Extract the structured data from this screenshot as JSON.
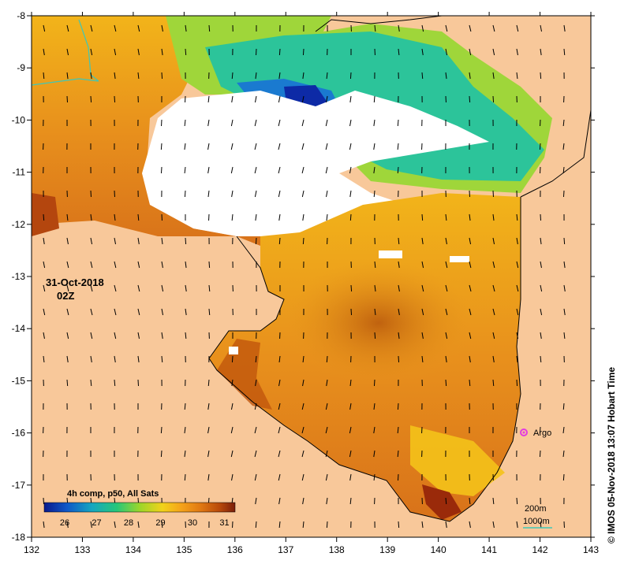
{
  "map": {
    "date_label": "31-Oct-2018",
    "time_label": "02Z",
    "x_ticks": [
      "132",
      "133",
      "134",
      "135",
      "136",
      "137",
      "138",
      "139",
      "140",
      "141",
      "142",
      "143"
    ],
    "y_ticks": [
      "-8",
      "-9",
      "-10",
      "-11",
      "-12",
      "-13",
      "-14",
      "-15",
      "-16",
      "-17",
      "-18"
    ],
    "legend": {
      "title": "4h comp, p50, All Sats",
      "ticks": [
        "26",
        "27",
        "28",
        "29",
        "30",
        "31"
      ],
      "colors": [
        "#0a1a8c",
        "#1058c8",
        "#15a6c0",
        "#27c77a",
        "#9bd62a",
        "#f2d21a",
        "#f5a21a",
        "#e07812",
        "#b8490a",
        "#7a1e0a"
      ]
    },
    "argo_label": "Argo",
    "argo_color": "#e23be0",
    "contours": {
      "shallow": "200m",
      "deep": "1000m",
      "color": "#3ec7b8"
    },
    "credit": "© IMOS 05-Nov-2018 13:07 Hobart Time",
    "colors": {
      "land": "#f8c89a",
      "cloud": "#ffffff",
      "coast": "#000000"
    }
  }
}
